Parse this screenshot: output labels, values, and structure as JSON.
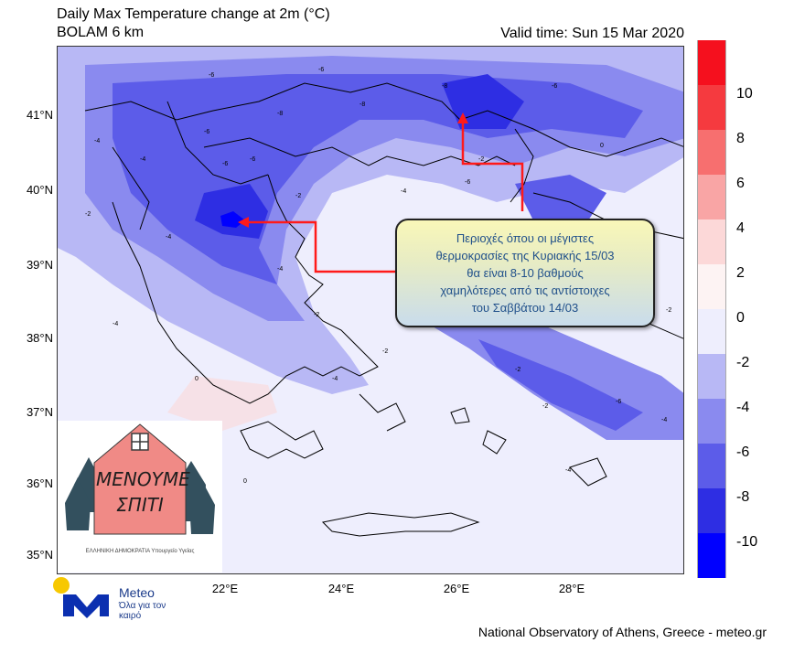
{
  "header": {
    "title": "Daily Max Temperature change at 2m (°C)",
    "model": "BOLAM 6 km",
    "valid_time": "Valid time: Sun 15 Mar 2020"
  },
  "axes": {
    "latitudes": [
      "41°N",
      "40°N",
      "39°N",
      "38°N",
      "37°N",
      "36°N",
      "35°N"
    ],
    "longitudes": [
      "22°E",
      "24°E",
      "26°E",
      "28°E"
    ]
  },
  "colorbar": {
    "levels": [
      "10",
      "8",
      "6",
      "4",
      "2",
      "0",
      "-2",
      "-4",
      "-6",
      "-8",
      "-10"
    ],
    "colors": [
      "#f5101e",
      "#f53a3f",
      "#f76f6f",
      "#f9a5a5",
      "#fcd8d8",
      "#fdf3f3",
      "#eeeefd",
      "#b8b8f5",
      "#8a8aef",
      "#5c5ce9",
      "#2e2ee3",
      "#0000ff"
    ]
  },
  "contour_labels": [
    "-6",
    "-6",
    "-8",
    "-8",
    "-6",
    "-8",
    "-4",
    "-6",
    "-6",
    "-4",
    "-2",
    "-4",
    "-6",
    "-4",
    "-2",
    "0",
    "-4",
    "-2",
    "-2",
    "-2",
    "0",
    "-2",
    "-4",
    "-6",
    "-2",
    "-4",
    "-6",
    "-4",
    "-4",
    "0",
    "-2"
  ],
  "callout": {
    "text": "Περιοχές όπου οι μέγιστες\nθερμοκρασίες της Κυριακής 15/03\nθα είναι 8-10 βαθμούς\nχαμηλότερες από τις αντίστοιχες\nτου Σαββάτου 14/03"
  },
  "stay_home": {
    "line1": "ΜΕΝΟΥΜΕ",
    "line2": "ΣΠΙΤΙ",
    "footer": "ΕΛΛΗΝΙΚΗ ΔΗΜΟΚΡΑΤΙΑ Υπουργείο Υγείας"
  },
  "logo": {
    "name": "Meteo",
    "slogan": "Όλα για τον καιρό"
  },
  "credit": "National Observatory of Athens, Greece - meteo.gr"
}
